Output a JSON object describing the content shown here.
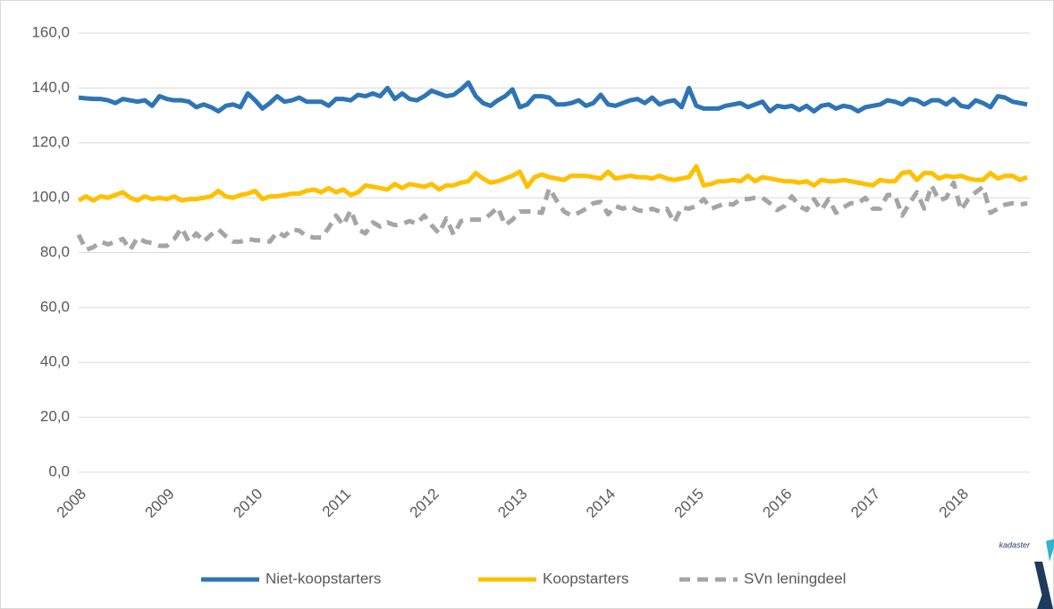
{
  "chart_data": {
    "type": "line",
    "categories": [
      "2008",
      null,
      null,
      null,
      null,
      null,
      null,
      null,
      null,
      null,
      null,
      null,
      "2009",
      null,
      null,
      null,
      null,
      null,
      null,
      null,
      null,
      null,
      null,
      null,
      "2010",
      null,
      null,
      null,
      null,
      null,
      null,
      null,
      null,
      null,
      null,
      null,
      "2011",
      null,
      null,
      null,
      null,
      null,
      null,
      null,
      null,
      null,
      null,
      null,
      "2012",
      null,
      null,
      null,
      null,
      null,
      null,
      null,
      null,
      null,
      null,
      null,
      "2013",
      null,
      null,
      null,
      null,
      null,
      null,
      null,
      null,
      null,
      null,
      null,
      "2014",
      null,
      null,
      null,
      null,
      null,
      null,
      null,
      null,
      null,
      null,
      null,
      "2015",
      null,
      null,
      null,
      null,
      null,
      null,
      null,
      null,
      null,
      null,
      null,
      "2016",
      null,
      null,
      null,
      null,
      null,
      null,
      null,
      null,
      null,
      null,
      null,
      "2017",
      null,
      null,
      null,
      null,
      null,
      null,
      null,
      null,
      null,
      null,
      null,
      "2018",
      null,
      null,
      null,
      null,
      null,
      null,
      null,
      null,
      null
    ],
    "series": [
      {
        "name": "Niet-koopstarters",
        "color": "#2E75B6",
        "linestyle": "solid",
        "values": [
          136.5,
          136.2,
          136,
          136,
          135.5,
          134.5,
          136,
          135.5,
          135,
          135.5,
          133.5,
          137,
          136,
          135.5,
          135.5,
          135,
          133,
          134,
          133,
          131.5,
          133.5,
          134,
          133,
          138,
          135.5,
          132.5,
          134.5,
          137,
          135,
          135.5,
          136.5,
          135,
          135,
          135,
          133.5,
          136,
          136,
          135.5,
          137.5,
          137,
          138,
          137,
          140,
          136,
          138,
          136,
          135.5,
          137,
          139,
          138,
          137,
          137.5,
          139.5,
          142,
          137,
          134.5,
          133.5,
          135.5,
          137,
          139.5,
          133,
          134,
          137,
          137,
          136.5,
          134,
          134,
          134.5,
          135.5,
          133.5,
          134.5,
          137.5,
          134,
          133.5,
          134.5,
          135.5,
          136,
          134.5,
          136.5,
          134,
          135,
          135.5,
          133,
          140,
          133.5,
          132.5,
          132.5,
          132.5,
          133.5,
          134,
          134.5,
          133,
          134,
          135,
          131.5,
          133.5,
          133,
          133.5,
          132,
          133.5,
          131.5,
          133.5,
          134,
          132.5,
          133.5,
          133,
          131.5,
          133,
          133.5,
          134,
          135.5,
          135,
          134,
          136,
          135.5,
          134,
          135.5,
          135.5,
          134,
          136,
          133.5,
          133,
          135.5,
          134.5,
          133,
          137,
          136.5,
          135,
          134.5,
          134
        ]
      },
      {
        "name": "Koopstarters",
        "color": "#FFC000",
        "linestyle": "solid",
        "values": [
          99,
          100.5,
          99,
          100.5,
          100,
          101,
          102,
          100,
          99,
          100.5,
          99.5,
          100,
          99.5,
          100.5,
          99,
          99.5,
          99.5,
          100,
          100.5,
          102.5,
          100.5,
          100,
          101,
          101.5,
          102.5,
          99.5,
          100.5,
          100.5,
          101,
          101.5,
          101.5,
          102.5,
          103,
          102,
          103.5,
          102,
          103,
          101,
          102,
          104.5,
          104,
          103.5,
          103,
          105,
          103.5,
          105,
          104.5,
          104,
          105,
          103,
          104.5,
          104.5,
          105.5,
          106,
          109,
          107,
          105.5,
          106,
          107,
          108,
          109.5,
          104,
          107.5,
          108.5,
          107.5,
          107,
          106.5,
          108,
          108,
          108,
          107.5,
          107,
          109.5,
          107,
          107.5,
          108,
          107.5,
          107.5,
          107,
          108,
          107,
          106.5,
          107,
          107.5,
          111.5,
          104.5,
          105,
          106,
          106,
          106.5,
          106,
          108,
          106,
          107.5,
          107,
          106.5,
          106,
          106,
          105.5,
          106,
          104.5,
          106.5,
          106,
          106,
          106.5,
          106,
          105.5,
          105,
          104.5,
          106.5,
          106,
          106,
          109,
          109.5,
          106.5,
          109,
          109,
          107,
          108,
          107.5,
          108,
          107,
          106.5,
          106.5,
          109,
          107,
          108,
          108,
          106.5,
          107.5
        ]
      },
      {
        "name": "SVn leningdeel",
        "color": "#A5A5A5",
        "linestyle": "dashed",
        "values": [
          86.5,
          81,
          82,
          84,
          83,
          84,
          85,
          81,
          85.5,
          84,
          83.5,
          82.5,
          82.5,
          85,
          89,
          84,
          87,
          84,
          86.5,
          88.5,
          86,
          84,
          84,
          85,
          84.5,
          84.5,
          84,
          87.5,
          86,
          88.5,
          88,
          86,
          85.5,
          85.5,
          89,
          93.5,
          90,
          95.5,
          88.5,
          87,
          91,
          89.5,
          91,
          90,
          90.5,
          91.5,
          90.5,
          93.5,
          90,
          87,
          92.5,
          86.5,
          91.5,
          92,
          92,
          92,
          94,
          96.5,
          90,
          92,
          95,
          95,
          95,
          94.5,
          103.5,
          99,
          95,
          93.5,
          94.5,
          96,
          98,
          98.5,
          94,
          97,
          96,
          97,
          95.5,
          95,
          96,
          95,
          96,
          91,
          96.5,
          96,
          97,
          99.5,
          96,
          97,
          98,
          97.5,
          99.5,
          99.5,
          100,
          100,
          98,
          95.5,
          97,
          100.5,
          97,
          95.5,
          99.5,
          95.5,
          99.5,
          94.5,
          96.5,
          98,
          98,
          100,
          96,
          96,
          101,
          101,
          93.5,
          98,
          102,
          96,
          104.5,
          99,
          100,
          105.5,
          95.5,
          99.5,
          102,
          104,
          94.5,
          96,
          97.5,
          98,
          97.5,
          98
        ]
      }
    ],
    "ylim": [
      0,
      160
    ],
    "yticks": [
      {
        "value": 0,
        "label": "0,0"
      },
      {
        "value": 20,
        "label": "20,0"
      },
      {
        "value": 40,
        "label": "40,0"
      },
      {
        "value": 60,
        "label": "60,0"
      },
      {
        "value": 80,
        "label": "80,0"
      },
      {
        "value": 100,
        "label": "100,0"
      },
      {
        "value": 120,
        "label": "120,0"
      },
      {
        "value": 140,
        "label": "140,0"
      },
      {
        "value": 160,
        "label": "160,0"
      }
    ],
    "grid": true,
    "legend": "bottom"
  },
  "logo": "kadaster"
}
